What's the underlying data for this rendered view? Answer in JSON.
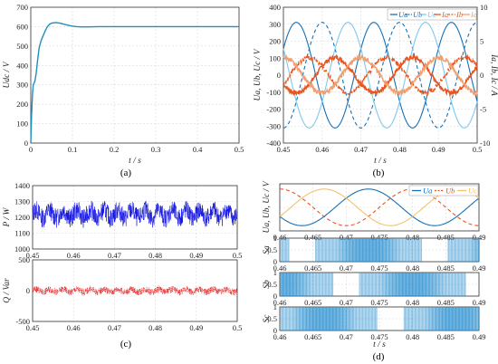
{
  "chart_data": [
    {
      "id": "a",
      "type": "line",
      "caption": "(a)",
      "xlabel": "t / s",
      "ylabel": "Udc / V",
      "xlim": [
        0,
        0.5
      ],
      "ylim": [
        0,
        700
      ],
      "xticks": [
        "0",
        "0.1",
        "0.2",
        "0.3",
        "0.4",
        "0.5"
      ],
      "yticks": [
        "0",
        "100",
        "200",
        "300",
        "400",
        "500",
        "600",
        "700"
      ],
      "grid": true,
      "series": [
        {
          "color": "#1f8fbf",
          "x": [
            0,
            0.002,
            0.004,
            0.006,
            0.008,
            0.01,
            0.013,
            0.016,
            0.02,
            0.025,
            0.03,
            0.035,
            0.04,
            0.045,
            0.05,
            0.055,
            0.06,
            0.065,
            0.07,
            0.075,
            0.08,
            0.09,
            0.1,
            0.11,
            0.12,
            0.14,
            0.16,
            0.2,
            0.3,
            0.4,
            0.5
          ],
          "values": [
            0,
            150,
            250,
            300,
            310,
            320,
            360,
            420,
            490,
            530,
            555,
            580,
            600,
            612,
            618,
            620,
            621,
            620,
            618,
            615,
            612,
            607,
            603,
            600,
            599,
            599,
            600,
            600,
            600,
            600,
            600
          ]
        }
      ]
    },
    {
      "id": "b",
      "type": "line",
      "caption": "(b)",
      "xlabel": "t / s",
      "ylabel": "Ua, Ub, Uc / V",
      "ylabel_right": "Ia, Ib, Ic / A",
      "xlim": [
        0.45,
        0.5
      ],
      "ylim": [
        -400,
        400
      ],
      "ylim_right": [
        -10,
        10
      ],
      "xticks": [
        "0.45",
        "0.46",
        "0.47",
        "0.48",
        "0.49",
        "0.5"
      ],
      "yticks": [
        "-400",
        "-300",
        "-200",
        "-100",
        "0",
        "100",
        "200",
        "300",
        "400"
      ],
      "yticks_right": [
        "-10",
        "-5",
        "0",
        "5",
        "10"
      ],
      "grid": true,
      "legend_position": "top-right",
      "series": [
        {
          "name": "Ua",
          "color": "#1570b8",
          "dash": "solid",
          "amplitude": 311,
          "frequency": 50,
          "phase_deg": -150,
          "axis": "left"
        },
        {
          "name": "Ub",
          "color": "#1570b8",
          "dash": "dashed",
          "amplitude": 311,
          "frequency": 50,
          "phase_deg": 90,
          "axis": "left"
        },
        {
          "name": "Uc",
          "color": "#7ec8ef",
          "dash": "solid",
          "amplitude": 311,
          "frequency": 50,
          "phase_deg": -30,
          "axis": "left"
        },
        {
          "name": "Ia",
          "color": "#e8561f",
          "dash": "solid",
          "amplitude": 2.6,
          "frequency": 50,
          "phase_deg": 30,
          "axis": "right"
        },
        {
          "name": "Ib",
          "color": "#e8561f",
          "dash": "dashed",
          "amplitude": 2.6,
          "frequency": 50,
          "phase_deg": 150,
          "axis": "right"
        },
        {
          "name": "Ic",
          "color": "#f0a070",
          "dash": "solid",
          "amplitude": 2.6,
          "frequency": 50,
          "phase_deg": -90,
          "axis": "right"
        }
      ]
    },
    {
      "id": "c",
      "type": "line",
      "caption": "(c)",
      "xlim": [
        0.45,
        0.5
      ],
      "xticks": [
        "0.45",
        "0.46",
        "0.47",
        "0.48",
        "0.49",
        "0.5"
      ],
      "grid": true,
      "subplots": [
        {
          "ylabel": "P / W",
          "ylim": [
            1000,
            1400
          ],
          "yticks": [
            "1000",
            "1100",
            "1200",
            "1300",
            "1400"
          ],
          "color": "#1010e0",
          "mean": 1220,
          "spread": 75,
          "ripple_frequency": 300
        },
        {
          "ylabel": "Q / Var",
          "ylim": [
            -500,
            500
          ],
          "yticks": [
            "-500",
            "0",
            "500"
          ],
          "color": "#e01010",
          "mean": 0,
          "spread": 70,
          "ripple_frequency": 300
        }
      ]
    },
    {
      "id": "d",
      "type": "line",
      "caption": "(d)",
      "xlabel": "t / s",
      "xlim": [
        0.46,
        0.49
      ],
      "xticks": [
        "0.46",
        "0.465",
        "0.47",
        "0.475",
        "0.48",
        "0.485",
        "0.49"
      ],
      "grid": true,
      "voltage": {
        "ylabel": "Ua, Ub, Uc / V",
        "legend_position": "top-right",
        "series": [
          {
            "name": "Ua",
            "color": "#1570b8",
            "dash": "solid",
            "amplitude": 311,
            "frequency": 50,
            "phase_deg": -150
          },
          {
            "name": "Ub",
            "color": "#e8561f",
            "dash": "dashed",
            "amplitude": 311,
            "frequency": 50,
            "phase_deg": 90
          },
          {
            "name": "Uc",
            "color": "#f5c16a",
            "dash": "solid",
            "amplitude": 311,
            "frequency": 50,
            "phase_deg": -30
          }
        ]
      },
      "switching": [
        {
          "ylabel": "Sa",
          "ylim": [
            0,
            1
          ],
          "yticks": [
            "0",
            "0.5",
            "1"
          ],
          "color": "#2a8fd0",
          "phase_deg": -150
        },
        {
          "ylabel": "Sb",
          "ylim": [
            0,
            1
          ],
          "yticks": [
            "0",
            "0.5",
            "1"
          ],
          "color": "#2a8fd0",
          "phase_deg": 90
        },
        {
          "ylabel": "Sc",
          "ylim": [
            0,
            1
          ],
          "yticks": [
            "0",
            "0.5",
            "1"
          ],
          "color": "#2a8fd0",
          "phase_deg": -30
        }
      ]
    }
  ]
}
